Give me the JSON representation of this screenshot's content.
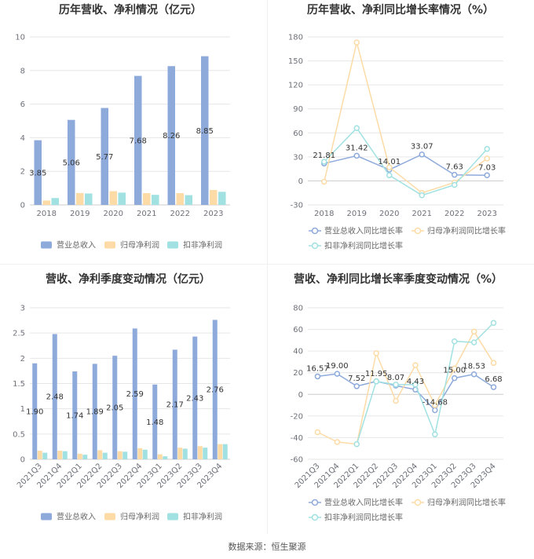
{
  "source_note": "数据来源：恒生聚源",
  "colors": {
    "series": [
      "#8eaadb",
      "#fcdba6",
      "#a2e1e2"
    ],
    "grid": "#e6e6e6",
    "axis": "#cccccc"
  },
  "chart_data": [
    {
      "type": "bar",
      "title": "历年营收、净利情况（亿元）",
      "categories": [
        "2018",
        "2019",
        "2020",
        "2021",
        "2022",
        "2023"
      ],
      "ylim": [
        0,
        10
      ],
      "yticks": [
        0,
        2,
        4,
        6,
        8,
        10
      ],
      "grid": true,
      "legend": "bottom",
      "series": [
        {
          "name": "营业总收入",
          "values": [
            3.85,
            5.06,
            5.77,
            7.68,
            8.26,
            8.85
          ],
          "data_labels": true
        },
        {
          "name": "归母净利润",
          "values": [
            0.26,
            0.71,
            0.82,
            0.7,
            0.7,
            0.89
          ],
          "data_labels": false
        },
        {
          "name": "扣非净利润",
          "values": [
            0.41,
            0.68,
            0.73,
            0.6,
            0.58,
            0.78
          ],
          "data_labels": false
        }
      ]
    },
    {
      "type": "line",
      "title": "历年营收、净利同比增长率情况（%）",
      "categories": [
        "2018",
        "2019",
        "2020",
        "2021",
        "2022",
        "2023"
      ],
      "ylim": [
        -30,
        180
      ],
      "yticks": [
        -30,
        0,
        30,
        60,
        90,
        120,
        150,
        180
      ],
      "grid": true,
      "legend": "bottom",
      "series": [
        {
          "name": "营业总收入同比增长率",
          "values": [
            21.81,
            31.42,
            14.01,
            33.07,
            7.63,
            7.03
          ],
          "data_labels": true
        },
        {
          "name": "归母净利润同比增长率",
          "values": [
            -1,
            173,
            17,
            -15,
            -2,
            28
          ],
          "data_labels": false
        },
        {
          "name": "扣非净利润同比增长率",
          "values": [
            24,
            66,
            7,
            -18,
            -5,
            40
          ],
          "data_labels": false
        }
      ]
    },
    {
      "type": "bar",
      "title": "营收、净利季度变动情况（亿元）",
      "categories": [
        "2021Q3",
        "2021Q4",
        "2022Q1",
        "2022Q2",
        "2022Q3",
        "2022Q4",
        "2023Q1",
        "2023Q2",
        "2023Q3",
        "2023Q4"
      ],
      "ylim": [
        0,
        3
      ],
      "yticks": [
        0,
        0.5,
        1,
        1.5,
        2,
        2.5,
        3
      ],
      "grid": true,
      "legend": "bottom",
      "series": [
        {
          "name": "营业总收入",
          "values": [
            1.9,
            2.48,
            1.74,
            1.89,
            2.05,
            2.59,
            1.48,
            2.17,
            2.43,
            2.76
          ],
          "data_labels": true
        },
        {
          "name": "归母净利润",
          "values": [
            0.17,
            0.17,
            0.11,
            0.18,
            0.16,
            0.22,
            0.1,
            0.23,
            0.26,
            0.3
          ],
          "data_labels": false
        },
        {
          "name": "扣非净利润",
          "values": [
            0.13,
            0.16,
            0.09,
            0.13,
            0.15,
            0.19,
            0.06,
            0.21,
            0.23,
            0.3
          ],
          "data_labels": false
        }
      ]
    },
    {
      "type": "line",
      "title": "营收、净利同比增长率季度变动情况（%）",
      "categories": [
        "2021Q3",
        "2021Q4",
        "2022Q1",
        "2022Q2",
        "2022Q3",
        "2022Q4",
        "2023Q1",
        "2023Q2",
        "2023Q3",
        "2023Q4"
      ],
      "ylim": [
        -60,
        80
      ],
      "yticks": [
        -60,
        -40,
        -20,
        0,
        20,
        40,
        60,
        80
      ],
      "grid": true,
      "legend": "bottom",
      "series": [
        {
          "name": "营业总收入同比增长率",
          "values": [
            16.57,
            19.0,
            7.52,
            11.95,
            8.07,
            4.43,
            -14.68,
            15.0,
            18.53,
            6.68
          ],
          "data_labels": true
        },
        {
          "name": "归母净利润同比增长率",
          "values": [
            -35,
            -44,
            -46,
            38,
            -6,
            27,
            -10,
            24,
            58,
            29
          ],
          "data_labels": false
        },
        {
          "name": "扣非净利润同比增长率",
          "values": [
            null,
            null,
            -46,
            12,
            9,
            9,
            -37,
            49,
            48,
            66
          ],
          "data_labels": false
        }
      ]
    }
  ]
}
